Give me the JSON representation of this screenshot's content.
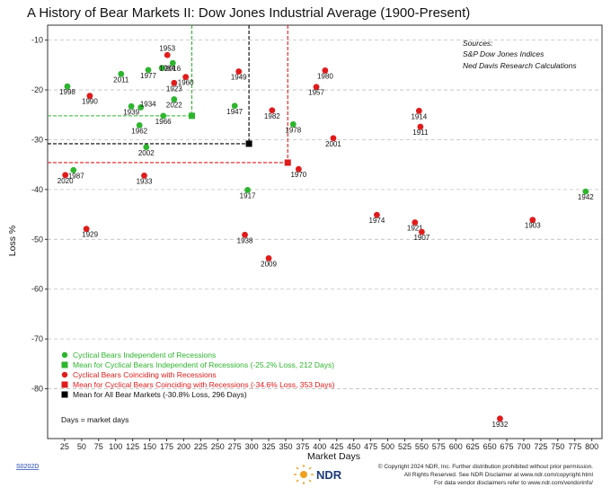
{
  "chart_data": {
    "type": "scatter",
    "title": "A History of Bear Markets II: Dow Jones Industrial Average (1900-Present)",
    "xlabel": "Market Days",
    "ylabel": "Loss %",
    "xlim": [
      0,
      815
    ],
    "ylim": [
      -90,
      -7
    ],
    "xticks": [
      25,
      50,
      75,
      100,
      125,
      150,
      175,
      200,
      225,
      250,
      275,
      300,
      325,
      350,
      375,
      400,
      425,
      450,
      475,
      500,
      525,
      550,
      575,
      600,
      625,
      650,
      675,
      700,
      725,
      750,
      775,
      800
    ],
    "yticks": [
      -10,
      -20,
      -30,
      -40,
      -50,
      -60,
      -70,
      -80
    ],
    "grid": "horizontal dashed",
    "sources": [
      "Sources:",
      "S&P Dow Jones Indices",
      "Ned Davis Research Calculations"
    ],
    "series": [
      {
        "name": "Cyclical Bears Independent of Recessions",
        "color": "#2db52d",
        "points": [
          {
            "label": "1998",
            "x": 29,
            "y": -19.3
          },
          {
            "label": "1987",
            "x": 38,
            "y": -36.1
          },
          {
            "label": "2011",
            "x": 108,
            "y": -16.8
          },
          {
            "label": "1939",
            "x": 123,
            "y": -23.3
          },
          {
            "label": "1934",
            "x": 137,
            "y": -23.5
          },
          {
            "label": "1962",
            "x": 135,
            "y": -27.1
          },
          {
            "label": "2002",
            "x": 145,
            "y": -31.5
          },
          {
            "label": "1977",
            "x": 148,
            "y": -16.0
          },
          {
            "label": "1984",
            "x": 168,
            "y": -15.6
          },
          {
            "label": "2016",
            "x": 184,
            "y": -14.6
          },
          {
            "label": "1966",
            "x": 170,
            "y": -25.2
          },
          {
            "label": "2022",
            "x": 186,
            "y": -21.9
          },
          {
            "label": "1947",
            "x": 275,
            "y": -23.2
          },
          {
            "label": "1978",
            "x": 361,
            "y": -26.9
          },
          {
            "label": "1917",
            "x": 294,
            "y": -40.1
          },
          {
            "label": "1942",
            "x": 791,
            "y": -40.4
          }
        ]
      },
      {
        "name": "Cyclical Bears Coinciding with Recessions",
        "color": "#e01b1b",
        "points": [
          {
            "label": "2020",
            "x": 26,
            "y": -37.1
          },
          {
            "label": "1990",
            "x": 62,
            "y": -21.2
          },
          {
            "label": "1929",
            "x": 57,
            "y": -47.9
          },
          {
            "label": "1953",
            "x": 176,
            "y": -13.0
          },
          {
            "label": "1923",
            "x": 186,
            "y": -18.6
          },
          {
            "label": "1960",
            "x": 203,
            "y": -17.4
          },
          {
            "label": "1933",
            "x": 142,
            "y": -37.2
          },
          {
            "label": "1949",
            "x": 281,
            "y": -16.3
          },
          {
            "label": "1982",
            "x": 330,
            "y": -24.1
          },
          {
            "label": "1957",
            "x": 395,
            "y": -19.4
          },
          {
            "label": "1980",
            "x": 408,
            "y": -16.1
          },
          {
            "label": "2001",
            "x": 420,
            "y": -29.7
          },
          {
            "label": "1970",
            "x": 369,
            "y": -35.9
          },
          {
            "label": "1938",
            "x": 290,
            "y": -49.1
          },
          {
            "label": "2009",
            "x": 325,
            "y": -53.8
          },
          {
            "label": "1974",
            "x": 484,
            "y": -45.1
          },
          {
            "label": "1914",
            "x": 546,
            "y": -24.2
          },
          {
            "label": "1911",
            "x": 548,
            "y": -27.4
          },
          {
            "label": "1921",
            "x": 540,
            "y": -46.6
          },
          {
            "label": "1907",
            "x": 550,
            "y": -48.5
          },
          {
            "label": "1903",
            "x": 713,
            "y": -46.1
          },
          {
            "label": "1932",
            "x": 665,
            "y": -86.0
          }
        ]
      }
    ],
    "means": [
      {
        "name": "Mean for Cyclical Bears Independent of Recessions (-25.2% Loss, 212 Days)",
        "x": 212,
        "y": -25.2,
        "color": "#2db52d"
      },
      {
        "name": "Mean for Cyclical Bears Coinciding with Recessions (-34.6% Loss, 353 Days)",
        "x": 353,
        "y": -34.6,
        "color": "#e01b1b"
      },
      {
        "name": "Mean for All Bear Markets (-30.8% Loss, 296 Days)",
        "x": 296,
        "y": -30.8,
        "color": "#000000"
      }
    ],
    "note": "Days = market days"
  },
  "footer": {
    "code": "S0202D",
    "brand": "NDR",
    "lines": [
      "© Copyright 2024 NDR, Inc. Further distribution prohibited without prior permission.",
      "All Rights Reserved. See NDR Disclaimer at www.ndr.com/copyright.html",
      "For data vendor disclaimers refer to www.ndr.com/vendorinfo/"
    ]
  }
}
